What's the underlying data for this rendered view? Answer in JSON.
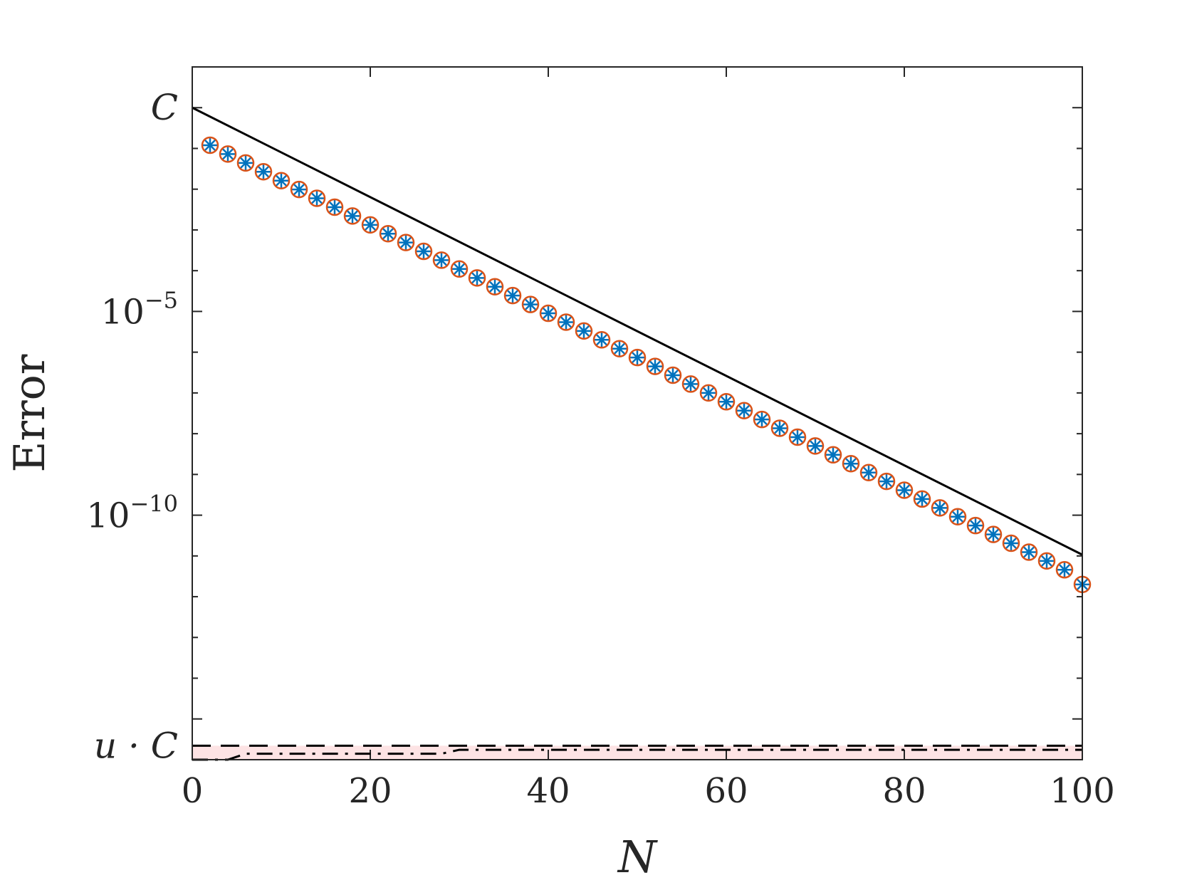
{
  "chart_data": {
    "type": "line",
    "xlabel": "N",
    "ylabel": "Error",
    "yscale": "log",
    "xlim": [
      0,
      100
    ],
    "ylim": [
      1e-16,
      10.0
    ],
    "xticks": [
      {
        "value": 0,
        "label": "0"
      },
      {
        "value": 20,
        "label": "20"
      },
      {
        "value": 40,
        "label": "40"
      },
      {
        "value": 60,
        "label": "60"
      },
      {
        "value": 80,
        "label": "80"
      },
      {
        "value": 100,
        "label": "100"
      }
    ],
    "yticks": [
      {
        "value": 1,
        "label": "C"
      },
      {
        "value": 1e-05,
        "base": "10",
        "exp": "−5"
      },
      {
        "value": 1e-10,
        "base": "10",
        "exp": "−10"
      },
      {
        "value": 2.2e-16,
        "label": "u · C"
      }
    ],
    "shaded_region": {
      "from": 2.2e-16,
      "to": 1e-16,
      "color": "#fde3e4"
    },
    "series": [
      {
        "style": "solid",
        "color": "#000000",
        "x": [
          0,
          100
        ],
        "y": [
          1,
          1.07e-11
        ]
      },
      {
        "style": "markers-asterisk",
        "color": "#0072bd",
        "x": [
          2,
          4,
          6,
          8,
          10,
          12,
          14,
          16,
          18,
          20,
          22,
          24,
          26,
          28,
          30,
          32,
          34,
          36,
          38,
          40,
          42,
          44,
          46,
          48,
          50,
          52,
          54,
          56,
          58,
          60,
          62,
          64,
          66,
          68,
          70,
          72,
          74,
          76,
          78,
          80,
          82,
          84,
          86,
          88,
          90,
          92,
          94,
          96,
          98,
          100
        ],
        "y": [
          0.12,
          0.0728,
          0.0441,
          0.0268,
          0.0162,
          0.00985,
          0.00598,
          0.00362,
          0.0022,
          0.00133,
          0.000809,
          0.000491,
          0.000298,
          0.000181,
          0.00011,
          6.65e-05,
          4.03e-05,
          2.45e-05,
          1.48e-05,
          9e-06,
          5.46e-06,
          3.31e-06,
          2.01e-06,
          1.22e-06,
          7.39e-07,
          4.48e-07,
          2.72e-07,
          1.65e-07,
          1e-07,
          6.07e-08,
          3.68e-08,
          2.23e-08,
          1.36e-08,
          8.22e-09,
          4.99e-09,
          3.03e-09,
          1.84e-09,
          1.11e-09,
          6.76e-10,
          4.1e-10,
          2.49e-10,
          1.51e-10,
          9.16e-11,
          5.56e-11,
          3.37e-11,
          2.05e-11,
          1.24e-11,
          7.53e-12,
          4.57e-12,
          2e-12
        ]
      },
      {
        "style": "markers-circle",
        "color": "#d95319",
        "x": [
          2,
          4,
          6,
          8,
          10,
          12,
          14,
          16,
          18,
          20,
          22,
          24,
          26,
          28,
          30,
          32,
          34,
          36,
          38,
          40,
          42,
          44,
          46,
          48,
          50,
          52,
          54,
          56,
          58,
          60,
          62,
          64,
          66,
          68,
          70,
          72,
          74,
          76,
          78,
          80,
          82,
          84,
          86,
          88,
          90,
          92,
          94,
          96,
          98,
          100
        ],
        "y": [
          0.12,
          0.0728,
          0.0441,
          0.0268,
          0.0162,
          0.00985,
          0.00598,
          0.00362,
          0.0022,
          0.00133,
          0.000809,
          0.000491,
          0.000298,
          0.000181,
          0.00011,
          6.65e-05,
          4.03e-05,
          2.45e-05,
          1.48e-05,
          9e-06,
          5.46e-06,
          3.31e-06,
          2.01e-06,
          1.22e-06,
          7.39e-07,
          4.48e-07,
          2.72e-07,
          1.65e-07,
          1e-07,
          6.07e-08,
          3.68e-08,
          2.23e-08,
          1.36e-08,
          8.22e-09,
          4.99e-09,
          3.03e-09,
          1.84e-09,
          1.11e-09,
          6.76e-10,
          4.1e-10,
          2.49e-10,
          1.51e-10,
          9.16e-11,
          5.56e-11,
          3.37e-11,
          2.05e-11,
          1.24e-11,
          7.53e-12,
          4.57e-12,
          2e-12
        ]
      },
      {
        "style": "dashed",
        "color": "#000000",
        "x": [
          0,
          100
        ],
        "y": [
          2.2e-16,
          2.2e-16
        ]
      },
      {
        "style": "dashdot",
        "color": "#000000",
        "x": [
          0,
          2,
          4,
          6,
          28,
          30,
          100
        ],
        "y": [
          1e-16,
          1e-16,
          1e-16,
          4.5e-17,
          4.5e-17,
          9e-17,
          9e-17
        ],
        "y_plot": [
          1e-16,
          1e-16,
          1e-16,
          1.4e-16,
          1.4e-16,
          1.75e-16,
          1.75e-16
        ]
      }
    ]
  }
}
